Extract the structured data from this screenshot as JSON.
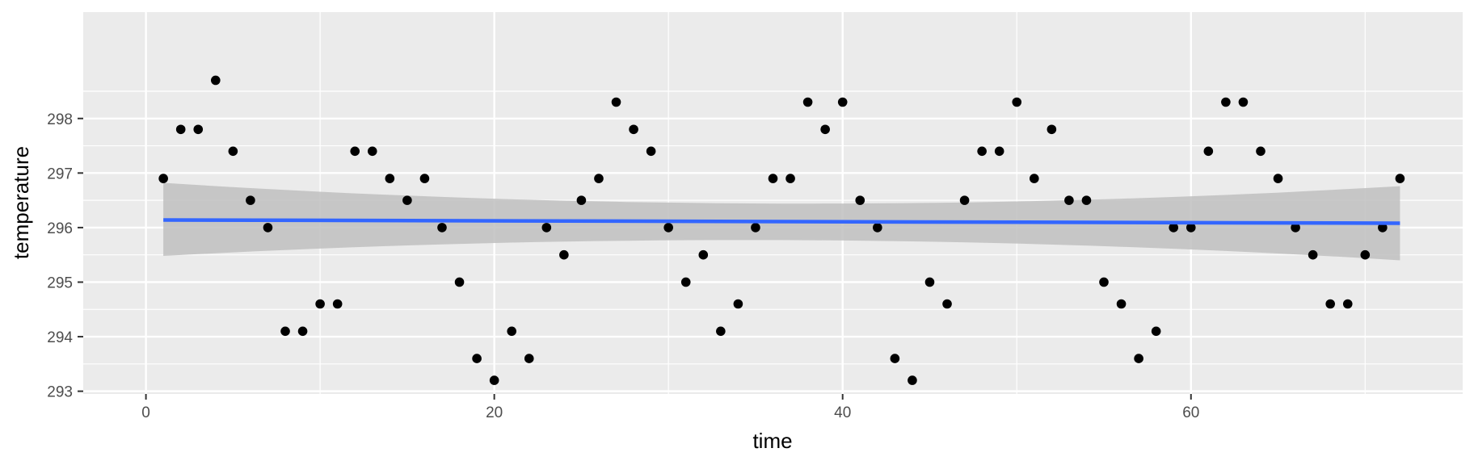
{
  "chart_data": {
    "type": "scatter",
    "title": "",
    "xlabel": "time",
    "ylabel": "temperature",
    "xlim": [
      -3.6,
      75.6
    ],
    "ylim": [
      292.95,
      299.95
    ],
    "x_ticks": [
      0,
      20,
      40,
      60
    ],
    "x_tick_labels": [
      "0",
      "20",
      "40",
      "60"
    ],
    "y_ticks": [
      293,
      294,
      295,
      296,
      297,
      298
    ],
    "y_tick_labels": [
      "293",
      "294",
      "295",
      "296",
      "297",
      "298"
    ],
    "grid": true,
    "legend": "none",
    "colors": {
      "panel": "#ebebeb",
      "grid": "#ffffff",
      "point": "#000000",
      "fit_line": "#3366ff",
      "ribbon": "#bfbfbf",
      "tick": "#333333"
    },
    "points": {
      "x": [
        1,
        2,
        3,
        4,
        5,
        6,
        7,
        8,
        9,
        10,
        11,
        12,
        13,
        14,
        15,
        16,
        17,
        18,
        19,
        20,
        21,
        22,
        23,
        24,
        25,
        26,
        27,
        28,
        29,
        30,
        31,
        32,
        33,
        34,
        35,
        36,
        37,
        38,
        39,
        40,
        41,
        42,
        43,
        44,
        45,
        46,
        47,
        48,
        49,
        50,
        51,
        52,
        53,
        54,
        55,
        56,
        57,
        58,
        59,
        60,
        61,
        62,
        63,
        64,
        65,
        66,
        67,
        68,
        69,
        70,
        71,
        72
      ],
      "y": [
        296.9,
        297.8,
        297.8,
        298.7,
        297.4,
        296.5,
        296.0,
        294.1,
        294.1,
        294.6,
        294.6,
        297.4,
        297.4,
        296.9,
        296.5,
        296.9,
        296.0,
        295.0,
        293.6,
        293.2,
        294.1,
        293.6,
        296.0,
        295.5,
        296.5,
        296.9,
        298.3,
        297.8,
        297.4,
        296.0,
        295.0,
        295.5,
        294.1,
        294.6,
        296.0,
        296.9,
        296.9,
        298.3,
        297.8,
        298.3,
        296.5,
        296.0,
        293.6,
        293.2,
        295.0,
        294.6,
        296.5,
        297.4,
        297.4,
        298.3,
        296.9,
        297.8,
        296.5,
        296.5,
        295.0,
        294.6,
        293.6,
        294.1,
        296.0,
        296.0,
        297.4,
        298.3,
        298.3,
        297.4,
        296.9,
        296.0,
        295.5,
        294.6,
        294.6,
        295.5,
        296.0,
        296.9
      ]
    },
    "fit": {
      "method": "lm",
      "x": [
        1,
        72
      ],
      "y": [
        296.14,
        296.08
      ],
      "ribbon_x": [
        1,
        36.5,
        72
      ],
      "ribbon_lower": [
        295.48,
        295.77,
        295.4
      ],
      "ribbon_upper": [
        296.82,
        296.44,
        296.76
      ]
    }
  }
}
